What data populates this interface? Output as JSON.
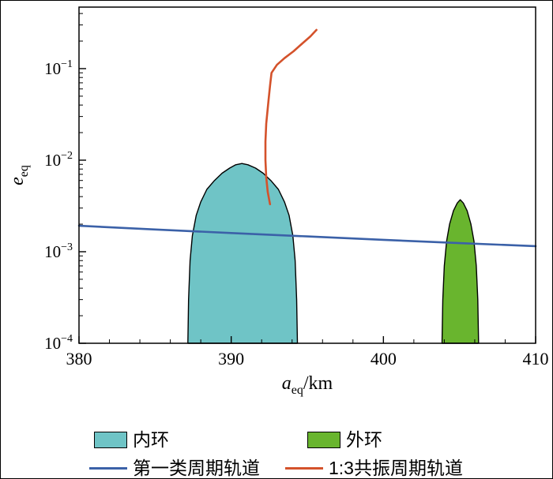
{
  "figure": {
    "background": "#ffffff",
    "frame_color": "#000000"
  },
  "chart_data": {
    "type": "area+line",
    "title": "",
    "log_y": true,
    "grid": false,
    "xlabel": {
      "symbol": "a",
      "subscript": "eq",
      "suffix": "/km"
    },
    "ylabel": {
      "symbol": "e",
      "subscript": "eq"
    },
    "xlim": [
      380,
      410
    ],
    "ylim": [
      0.0001,
      0.47
    ],
    "ylim_exp": [
      -4,
      -0.328
    ],
    "x_ticks": [
      380,
      390,
      400,
      410
    ],
    "x_minor_step": 2,
    "y_ticks_exp": [
      -1,
      -2,
      -3,
      -4
    ],
    "regions": [
      {
        "key": "inner-ring",
        "name": "内环",
        "color": "#6fc4c6",
        "edge_color": "#000000",
        "points": [
          [
            387.15,
            0.0001
          ],
          [
            387.2,
            0.0003
          ],
          [
            387.3,
            0.0008
          ],
          [
            387.45,
            0.0015
          ],
          [
            387.7,
            0.0025
          ],
          [
            388.0,
            0.0035
          ],
          [
            388.4,
            0.0048
          ],
          [
            388.9,
            0.006
          ],
          [
            389.4,
            0.0072
          ],
          [
            389.9,
            0.0082
          ],
          [
            390.3,
            0.0089
          ],
          [
            390.7,
            0.0092
          ],
          [
            391.1,
            0.0089
          ],
          [
            391.6,
            0.0082
          ],
          [
            392.1,
            0.0072
          ],
          [
            392.6,
            0.006
          ],
          [
            393.1,
            0.0048
          ],
          [
            393.5,
            0.0035
          ],
          [
            393.8,
            0.0025
          ],
          [
            394.05,
            0.0015
          ],
          [
            394.2,
            0.0008
          ],
          [
            394.3,
            0.0003
          ],
          [
            394.35,
            0.0001
          ]
        ]
      },
      {
        "key": "outer-ring",
        "name": "外环",
        "color": "#69b52e",
        "edge_color": "#000000",
        "points": [
          [
            403.85,
            0.0001
          ],
          [
            403.9,
            0.0003
          ],
          [
            404.0,
            0.0007
          ],
          [
            404.15,
            0.0013
          ],
          [
            404.35,
            0.002
          ],
          [
            404.6,
            0.0028
          ],
          [
            404.85,
            0.0034
          ],
          [
            405.05,
            0.0037
          ],
          [
            405.25,
            0.0034
          ],
          [
            405.5,
            0.0028
          ],
          [
            405.75,
            0.002
          ],
          [
            405.95,
            0.0013
          ],
          [
            406.1,
            0.0007
          ],
          [
            406.2,
            0.0003
          ],
          [
            406.25,
            0.0001
          ]
        ]
      }
    ],
    "lines": [
      {
        "key": "first-class-periodic-orbit",
        "name": "第一类周期轨道",
        "color": "#3b61a8",
        "points": [
          [
            380,
            0.00192
          ],
          [
            385,
            0.00175
          ],
          [
            390,
            0.0016
          ],
          [
            395,
            0.00147
          ],
          [
            400,
            0.00135
          ],
          [
            405,
            0.00124
          ],
          [
            410,
            0.00115
          ]
        ]
      },
      {
        "key": "resonance-1-3-periodic-orbit",
        "name": "1:3共振周期轨道",
        "color": "#d4522b",
        "points": [
          [
            392.55,
            0.0033
          ],
          [
            392.4,
            0.0045
          ],
          [
            392.3,
            0.0065
          ],
          [
            392.25,
            0.01
          ],
          [
            392.25,
            0.016
          ],
          [
            392.3,
            0.025
          ],
          [
            392.45,
            0.045
          ],
          [
            392.55,
            0.065
          ],
          [
            392.65,
            0.09
          ],
          [
            393.0,
            0.11
          ],
          [
            393.5,
            0.13
          ],
          [
            394.1,
            0.155
          ],
          [
            394.7,
            0.19
          ],
          [
            395.2,
            0.225
          ],
          [
            395.6,
            0.265
          ]
        ]
      }
    ]
  },
  "legend": {
    "items": [
      {
        "type": "region",
        "key": "inner-ring",
        "label": "内环",
        "color": "#6fc4c6"
      },
      {
        "type": "region",
        "key": "outer-ring",
        "label": "外环",
        "color": "#69b52e"
      },
      {
        "type": "line",
        "key": "first-class-periodic-orbit",
        "label": "第一类周期轨道",
        "color": "#3b61a8"
      },
      {
        "type": "line",
        "key": "resonance-1-3-periodic-orbit",
        "label": "1:3共振周期轨道",
        "color": "#d4522b"
      }
    ]
  }
}
